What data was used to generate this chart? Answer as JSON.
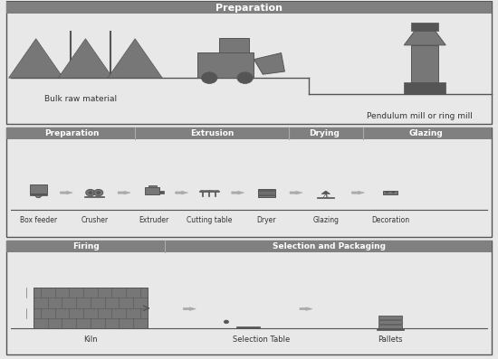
{
  "bg_color": "#e8e8e8",
  "header_color": "#808080",
  "header_text_color": "#ffffff",
  "line_color": "#555555",
  "icon_color": "#777777",
  "icon_dark": "#555555",
  "icon_light": "#aaaaaa",
  "arrow_color": "#888888",
  "text_color": "#333333",
  "section1": {
    "header": "Preparation",
    "labels": [
      "Bulk raw material",
      "Pendulum mill or ring mill"
    ]
  },
  "section2": {
    "header_labels": [
      "Preparation",
      "Extrusion",
      "Drying",
      "Glazing"
    ],
    "header_dividers": [
      0.27,
      0.58,
      0.73
    ],
    "labels": [
      "Box feeder",
      "Crusher",
      "Extruder",
      "Cutting table",
      "Dryer",
      "Glazing",
      "Decoration"
    ]
  },
  "section3": {
    "header_labels": [
      "Firing",
      "Selection and Packaging"
    ],
    "header_divider": 0.33,
    "labels": [
      "Kiln",
      "Selection Table",
      "Pallets"
    ]
  }
}
